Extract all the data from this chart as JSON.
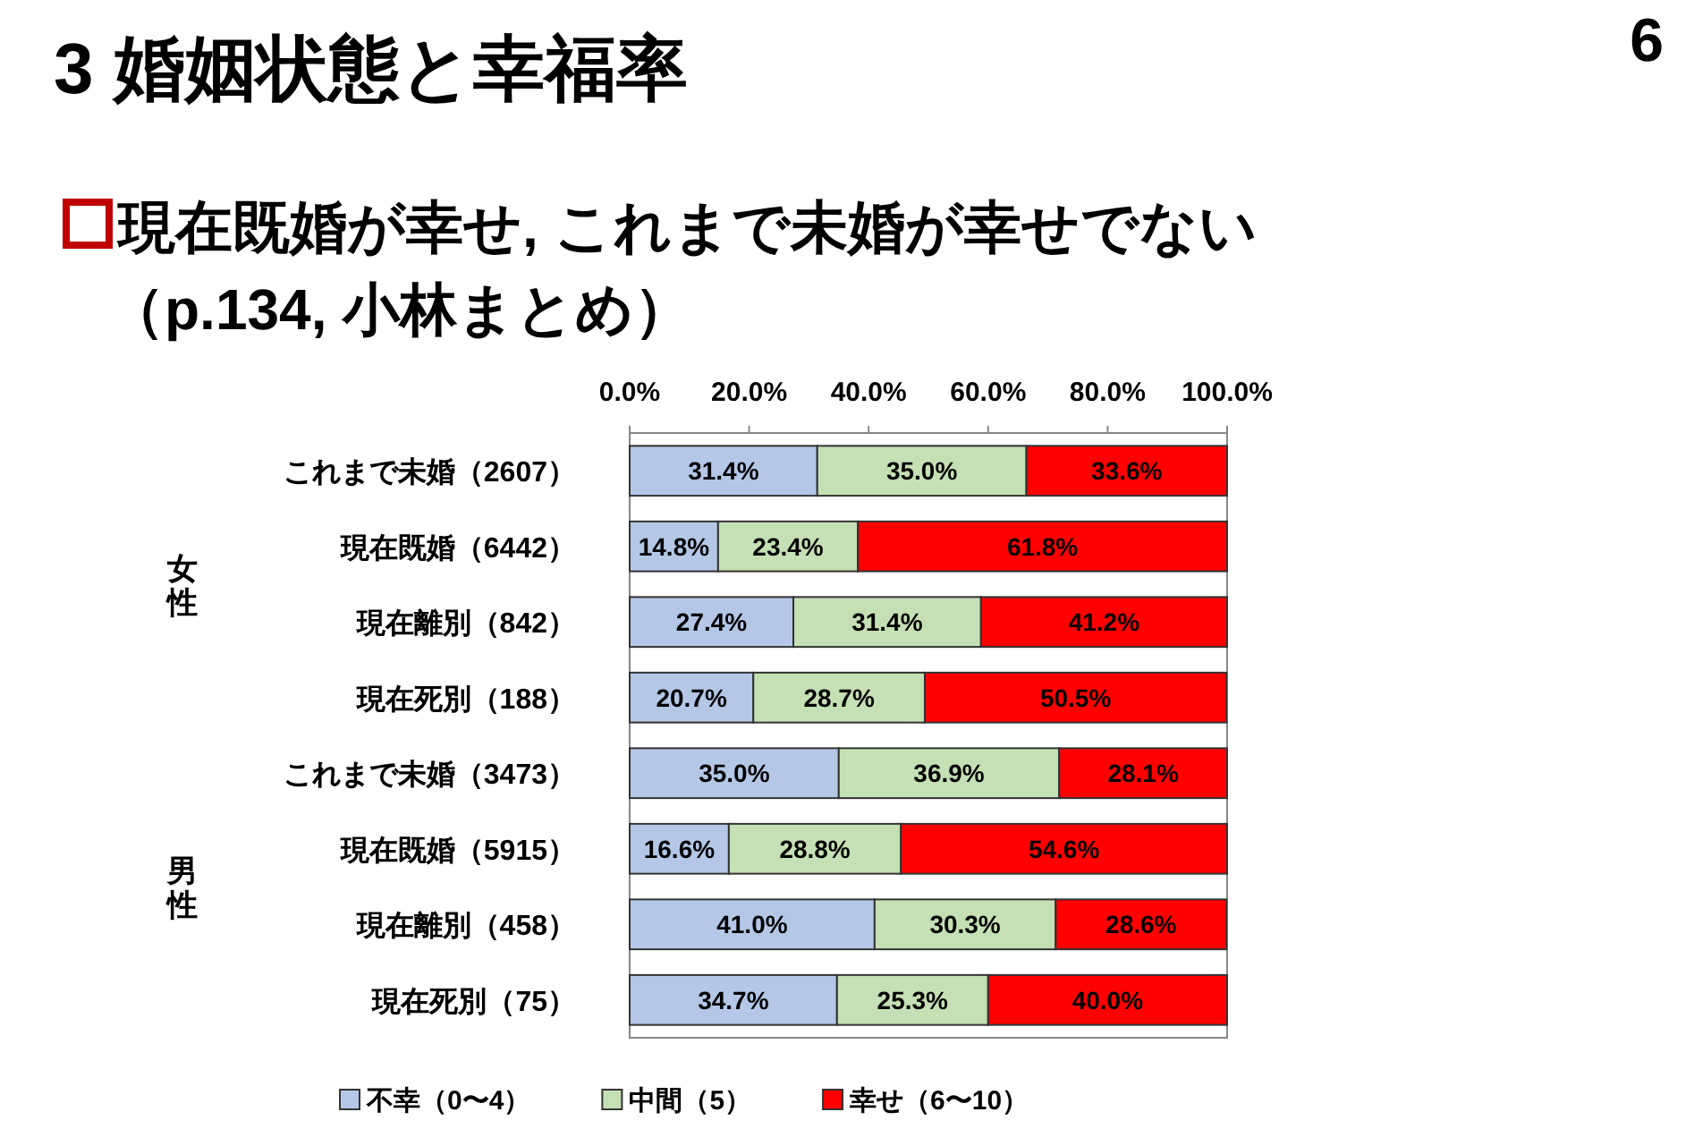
{
  "chart_data": {
    "type": "bar",
    "orientation": "horizontal",
    "stacked": true,
    "title": "3  婚姻状態と幸福率",
    "subtitle": "現在既婚が幸せ, これまで未婚が幸せでない",
    "categories": [
      "これまで未婚（2607）",
      "現在既婚（6442）",
      "現在離別（842）",
      "現在死別（188）",
      "これまで未婚（3473）",
      "現在既婚（5915）",
      "現在離別（458）",
      "現在死別（75）"
    ],
    "series": [
      {
        "name": "不幸（0〜4）",
        "color": "#b4c7e7",
        "values": [
          31.4,
          14.8,
          27.4,
          20.7,
          35.0,
          16.6,
          41.0,
          34.7
        ],
        "value_labels": [
          "31.4%",
          "14.8%",
          "27.4%",
          "20.7%",
          "35.0%",
          "16.6%",
          "41.0%",
          "34.7%"
        ]
      },
      {
        "name": "中間（5）",
        "color": "#c5e0b4",
        "values": [
          35.0,
          23.4,
          31.4,
          28.7,
          36.9,
          28.8,
          30.3,
          25.3
        ],
        "value_labels": [
          "35.0%",
          "23.4%",
          "31.4%",
          "28.7%",
          "36.9%",
          "28.8%",
          "30.3%",
          "25.3%"
        ]
      },
      {
        "name": "幸せ（6〜10）",
        "color": "#ff0000",
        "values": [
          33.6,
          61.8,
          41.2,
          50.5,
          28.1,
          54.6,
          28.6,
          40.0
        ],
        "value_labels": [
          "33.6%",
          "61.8%",
          "41.2%",
          "50.5%",
          "28.1%",
          "54.6%",
          "28.6%",
          "40.0%"
        ]
      }
    ],
    "xlim": [
      0,
      100
    ],
    "xticks": [
      {
        "value": 0,
        "label": "0.0%"
      },
      {
        "value": 20,
        "label": "20.0%"
      },
      {
        "value": 40,
        "label": "40.0%"
      },
      {
        "value": 60,
        "label": "60.0%"
      },
      {
        "value": 80,
        "label": "80.0%"
      },
      {
        "value": 100,
        "label": "100.0%"
      }
    ],
    "legend": "bottom",
    "grid": false,
    "annotations": [
      "女性",
      "男性",
      "6",
      "（p.134, 小林まとめ）"
    ]
  }
}
